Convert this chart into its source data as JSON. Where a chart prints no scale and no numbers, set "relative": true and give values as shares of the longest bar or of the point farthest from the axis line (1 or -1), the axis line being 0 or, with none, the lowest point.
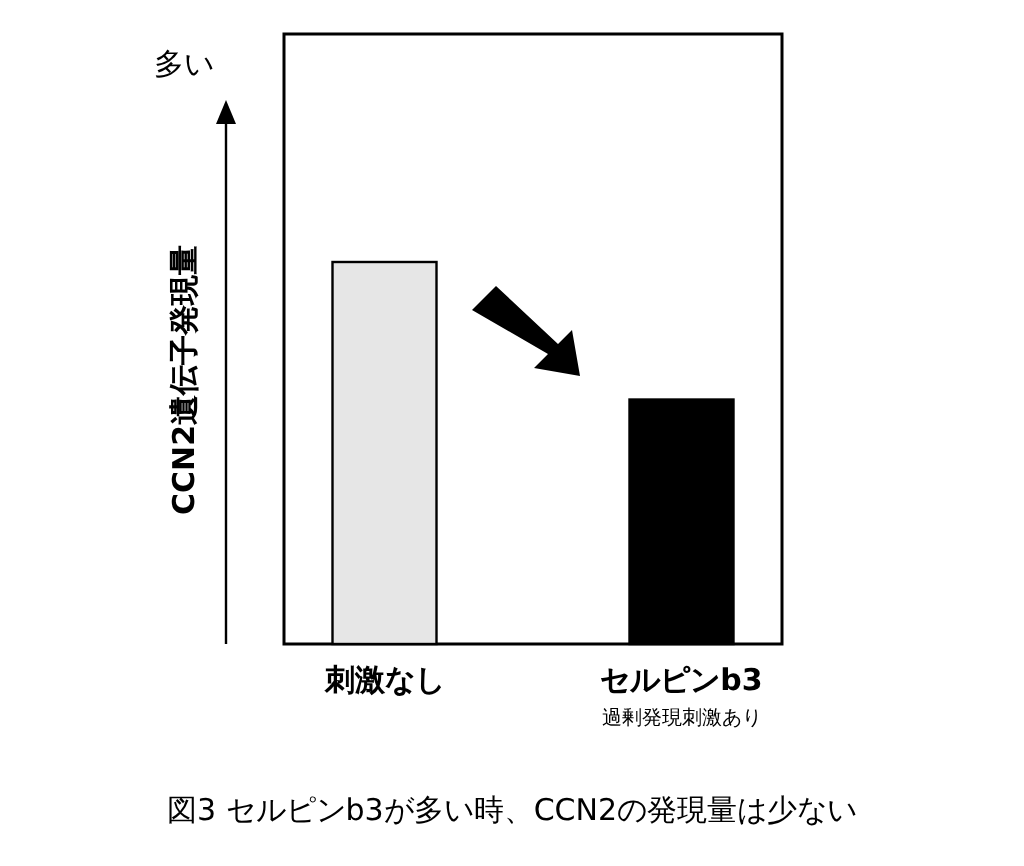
{
  "chart_data": {
    "type": "bar",
    "relative": true,
    "title": "図3 セルピンb3が多い時、CCN2の発現量は少ない",
    "ylabel": "CCN2遺伝子発現量",
    "annotations": [
      "多い"
    ],
    "categories": [
      "刺激なし",
      "セルピンb3\n過剰発現刺激あり"
    ],
    "values": [
      1,
      0.64
    ],
    "colors": [
      "#e6e6e6",
      "#000000"
    ]
  }
}
